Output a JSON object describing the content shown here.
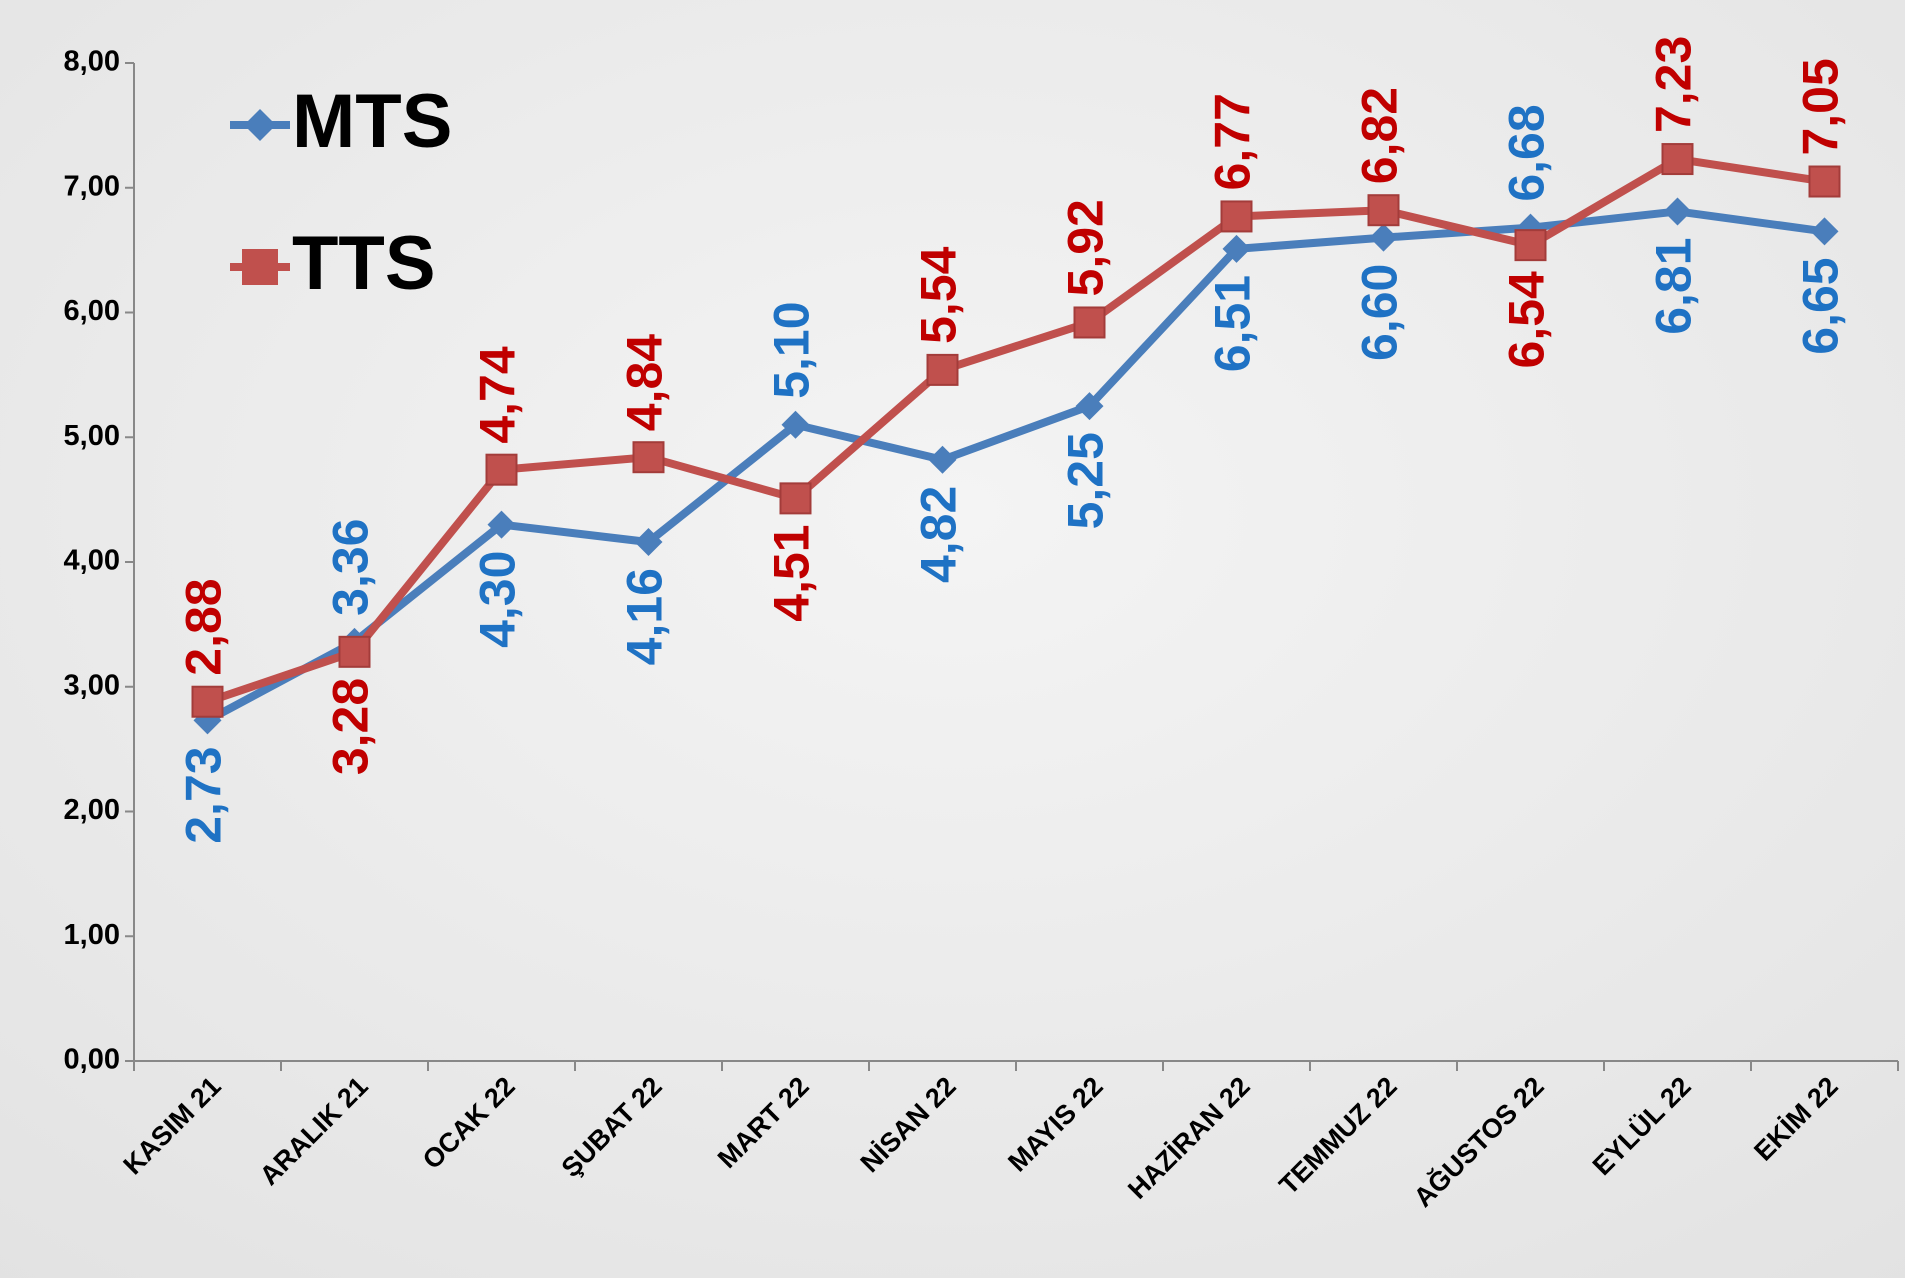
{
  "chart_data": {
    "type": "line",
    "categories": [
      "KASIM 21",
      "ARALIK 21",
      "OCAK 22",
      "ŞUBAT 22",
      "MART 22",
      "NİSAN 22",
      "MAYIS 22",
      "HAZİRAN 22",
      "TEMMUZ 22",
      "AĞUSTOS 22",
      "EYLÜL 22",
      "EKİM 22"
    ],
    "series": [
      {
        "name": "MTS",
        "color": "#4a7ebb",
        "label_color": "#1f72c4",
        "marker": "diamond",
        "values": [
          2.73,
          3.36,
          4.3,
          4.16,
          5.1,
          4.82,
          5.25,
          6.51,
          6.6,
          6.68,
          6.81,
          6.65
        ],
        "value_labels": [
          "2,73",
          "3,36",
          "4,30",
          "4,16",
          "5,10",
          "4,82",
          "5,25",
          "6,51",
          "6,60",
          "6,68",
          "6,81",
          "6,65"
        ]
      },
      {
        "name": "TTS",
        "color": "#c0504d",
        "label_color": "#c00000",
        "marker": "square",
        "values": [
          2.88,
          3.28,
          4.74,
          4.84,
          4.51,
          5.54,
          5.92,
          6.77,
          6.82,
          6.54,
          7.23,
          7.05
        ],
        "value_labels": [
          "2,88",
          "3,28",
          "4,74",
          "4,84",
          "4,51",
          "5,54",
          "5,92",
          "6,77",
          "6,82",
          "6,54",
          "7,23",
          "7,05"
        ]
      }
    ],
    "ylim": [
      0,
      8
    ],
    "yticks": [
      {
        "value": 0,
        "label": "0,00"
      },
      {
        "value": 1,
        "label": "1,00"
      },
      {
        "value": 2,
        "label": "2,00"
      },
      {
        "value": 3,
        "label": "3,00"
      },
      {
        "value": 4,
        "label": "4,00"
      },
      {
        "value": 5,
        "label": "5,00"
      },
      {
        "value": 6,
        "label": "6,00"
      },
      {
        "value": 7,
        "label": "7,00"
      },
      {
        "value": 8,
        "label": "8,00"
      }
    ],
    "grid": false,
    "legend": "upper left"
  }
}
